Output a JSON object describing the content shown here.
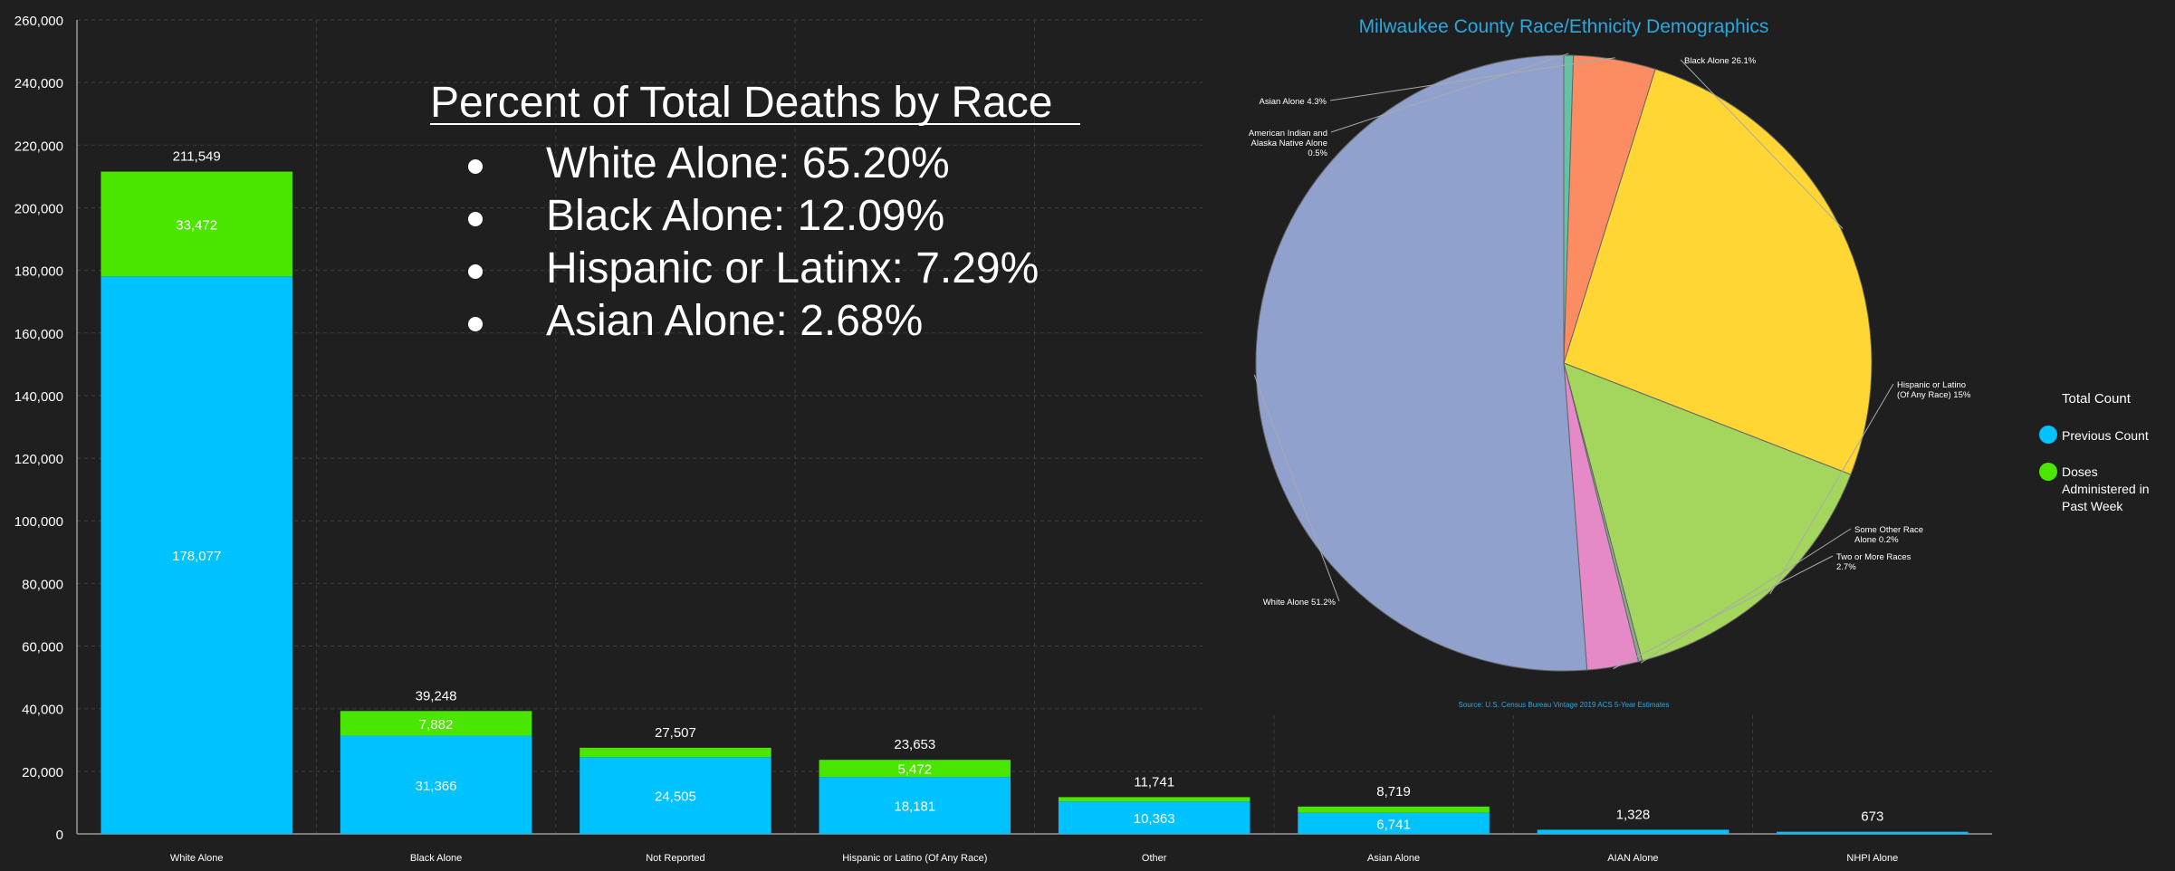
{
  "chart_data": [
    {
      "type": "bar",
      "stacked": true,
      "categories": [
        "White Alone",
        "Black Alone",
        "Not Reported",
        "Hispanic or Latino (Of Any Race)",
        "Other",
        "Asian Alone",
        "AIAN Alone",
        "NHPI Alone"
      ],
      "series": [
        {
          "name": "Previous Count",
          "color": "#00c2ff",
          "values": [
            178077,
            31366,
            24505,
            18181,
            10363,
            6741,
            1328,
            673
          ]
        },
        {
          "name": "Doses Administered in Past Week",
          "color": "#4be600",
          "values": [
            33472,
            7882,
            3002,
            5472,
            1378,
            1978,
            0,
            0
          ]
        }
      ],
      "segment_labels": {
        "previous": [
          "178,077",
          "31,366",
          "24,505",
          "18,181",
          "10,363",
          "6,741",
          "",
          ""
        ],
        "week": [
          "33,472",
          "7,882",
          "",
          "5,472",
          "",
          "",
          "",
          ""
        ]
      },
      "totals": [
        211549,
        39248,
        27507,
        23653,
        11741,
        8719,
        1328,
        673
      ],
      "total_labels": [
        "211,549",
        "39,248",
        "27,507",
        "23,653",
        "11,741",
        "8,719",
        "1,328",
        "673"
      ],
      "ylim": [
        0,
        260000
      ],
      "yticks": [
        0,
        20000,
        40000,
        60000,
        80000,
        100000,
        120000,
        140000,
        160000,
        180000,
        200000,
        220000,
        240000,
        260000
      ],
      "ytick_labels": [
        "0",
        "20,000",
        "40,000",
        "60,000",
        "80,000",
        "100,000",
        "120,000",
        "140,000",
        "160,000",
        "180,000",
        "200,000",
        "220,000",
        "240,000",
        "260,000"
      ],
      "grid": true,
      "legend": {
        "title": "Total Count",
        "position": "right",
        "items": [
          {
            "label": "Previous Count",
            "color": "#00c2ff"
          },
          {
            "label": "Doses Administered in Past Week",
            "color": "#4be600"
          }
        ]
      }
    },
    {
      "type": "pie",
      "title": "Milwaukee County Race/Ethnicity Demographics",
      "source": "Source: U.S. Census Bureau Vintage 2019 ACS 5-Year Estimates",
      "slices": [
        {
          "label": "Black Alone 26.1%",
          "value": 26.1,
          "color": "#ffd633"
        },
        {
          "label": "Hispanic or Latino (Of Any Race) 15%",
          "value": 15.0,
          "color": "#a4d65e"
        },
        {
          "label": "Some Other Race Alone 0.2%",
          "value": 0.2,
          "color": "#8aa88a"
        },
        {
          "label": "Two or More Races 2.7%",
          "value": 2.7,
          "color": "#e58ac7"
        },
        {
          "label": "White Alone 51.2%",
          "value": 51.2,
          "color": "#8fa1cc"
        },
        {
          "label": "American Indian and Alaska Native Alone 0.5%",
          "value": 0.5,
          "color": "#66c2a5"
        },
        {
          "label": "Asian Alone 4.3%",
          "value": 4.3,
          "color": "#fc8d62"
        }
      ]
    }
  ],
  "annotation": {
    "title": "Percent of Total Deaths by Race",
    "items": [
      "White Alone: 65.20%",
      "Black Alone: 12.09%",
      "Hispanic or Latinx: 7.29%",
      "Asian Alone: 2.68%"
    ]
  }
}
